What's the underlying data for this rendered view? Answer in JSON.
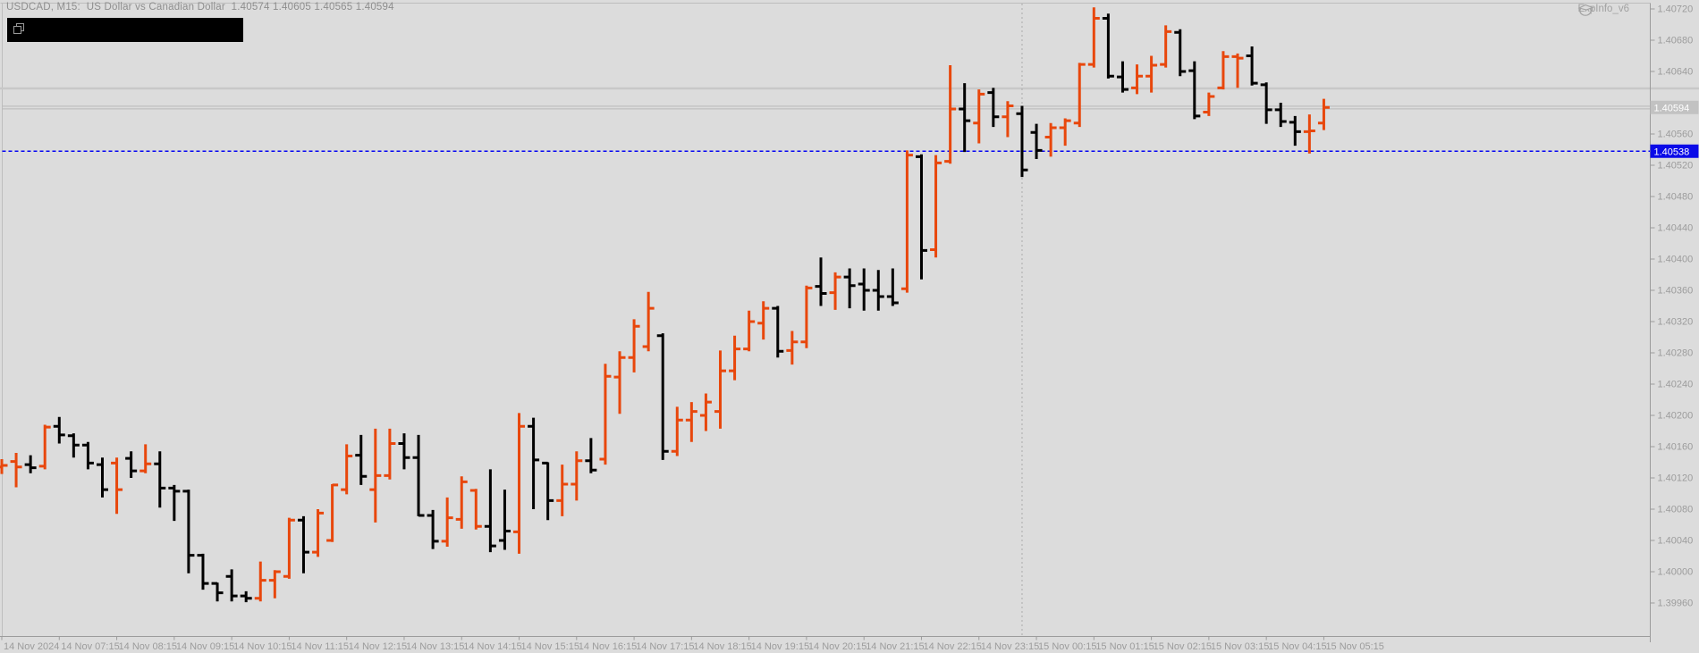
{
  "window": {
    "title_line": "USDCAD, M15:  US Dollar vs Canadian Dollar  1.40574 1.40605 1.40565 1.40594",
    "expert_label": "ExpInfo_v6"
  },
  "price_axis": {
    "labels": [
      "1.40720",
      "1.40680",
      "1.40640",
      "1.40560",
      "1.40520",
      "1.40480",
      "1.40440",
      "1.40400",
      "1.40360",
      "1.40320",
      "1.40280",
      "1.40240",
      "1.40200",
      "1.40160",
      "1.40120",
      "1.40080",
      "1.40040",
      "1.40000",
      "1.39960"
    ],
    "bid_label": "1.40594",
    "blue_line_label": "1.40538"
  },
  "time_axis": {
    "labels": [
      "14 Nov 2024",
      "14 Nov 07:15",
      "14 Nov 08:15",
      "14 Nov 09:15",
      "14 Nov 10:15",
      "14 Nov 11:15",
      "14 Nov 12:15",
      "14 Nov 13:15",
      "14 Nov 14:15",
      "14 Nov 15:15",
      "14 Nov 16:15",
      "14 Nov 17:15",
      "14 Nov 18:15",
      "14 Nov 19:15",
      "14 Nov 20:15",
      "14 Nov 21:15",
      "14 Nov 22:15",
      "14 Nov 23:15",
      "15 Nov 00:15",
      "15 Nov 01:15",
      "15 Nov 02:15",
      "15 Nov 03:15",
      "15 Nov 04:15",
      "15 Nov 05:15"
    ]
  },
  "chart_data": {
    "type": "ohlc-bar",
    "symbol": "USDCAD",
    "timeframe": "M15",
    "title": "USDCAD, M15: US Dollar vs Canadian Dollar",
    "current_bar": {
      "open": 1.40574,
      "high": 1.40605,
      "low": 1.40565,
      "close": 1.40594
    },
    "bid_price": 1.40594,
    "blue_line_price": 1.40538,
    "price_axis_top": 1.4072,
    "price_axis_bottom": 1.3996,
    "start_time": "14 Nov 2024 06:15",
    "interval_minutes": 15,
    "day_separator_time": "00:00",
    "up_color": "#e8470c",
    "down_color": "#000000",
    "grid": "off",
    "bars": [
      [
        "06:15",
        1.40134,
        1.40144,
        1.40125,
        1.40136,
        "u"
      ],
      [
        "06:30",
        1.40141,
        1.40152,
        1.40108,
        1.40134,
        "u"
      ],
      [
        "06:45",
        1.40137,
        1.40149,
        1.40126,
        1.40133,
        "d"
      ],
      [
        "07:00",
        1.40135,
        1.40188,
        1.40131,
        1.40185,
        "u"
      ],
      [
        "07:15",
        1.40186,
        1.40198,
        1.40164,
        1.40175,
        "d"
      ],
      [
        "07:30",
        1.40174,
        1.40177,
        1.40146,
        1.40162,
        "d"
      ],
      [
        "07:45",
        1.40162,
        1.40166,
        1.40131,
        1.40139,
        "d"
      ],
      [
        "08:00",
        1.40137,
        1.40146,
        1.40095,
        1.40105,
        "d"
      ],
      [
        "08:15",
        1.40139,
        1.40146,
        1.40074,
        1.40105,
        "u"
      ],
      [
        "08:30",
        1.40145,
        1.40154,
        1.4012,
        1.40129,
        "d"
      ],
      [
        "08:45",
        1.40129,
        1.40163,
        1.40126,
        1.40138,
        "u"
      ],
      [
        "09:00",
        1.40138,
        1.40154,
        1.40082,
        1.40107,
        "d"
      ],
      [
        "09:15",
        1.40107,
        1.40111,
        1.40065,
        1.40103,
        "d"
      ],
      [
        "09:30",
        1.40103,
        1.40105,
        1.39998,
        1.40021,
        "d"
      ],
      [
        "09:45",
        1.40021,
        1.40023,
        1.39977,
        1.39985,
        "d"
      ],
      [
        "10:00",
        1.39985,
        1.39986,
        1.39962,
        1.39973,
        "d"
      ],
      [
        "10:15",
        1.39994,
        1.40003,
        1.39962,
        1.39969,
        "d"
      ],
      [
        "10:30",
        1.39969,
        1.39975,
        1.39961,
        1.39966,
        "d"
      ],
      [
        "10:45",
        1.39966,
        1.40013,
        1.39962,
        1.39989,
        "u"
      ],
      [
        "11:00",
        1.39989,
        1.40002,
        1.39966,
        1.4,
        "u"
      ],
      [
        "11:15",
        1.39994,
        1.40069,
        1.39991,
        1.40066,
        "u"
      ],
      [
        "11:30",
        1.40066,
        1.40071,
        1.39998,
        1.40025,
        "d"
      ],
      [
        "11:45",
        1.40025,
        1.4008,
        1.40019,
        1.40075,
        "u"
      ],
      [
        "12:00",
        1.4004,
        1.40112,
        1.40038,
        1.40111,
        "u"
      ],
      [
        "12:15",
        1.40105,
        1.40163,
        1.40099,
        1.40148,
        "u"
      ],
      [
        "12:30",
        1.40149,
        1.40175,
        1.40111,
        1.40122,
        "d"
      ],
      [
        "12:45",
        1.40105,
        1.40183,
        1.40063,
        1.40123,
        "u"
      ],
      [
        "13:00",
        1.40123,
        1.40183,
        1.40118,
        1.40164,
        "u"
      ],
      [
        "13:15",
        1.40164,
        1.40177,
        1.40131,
        1.40146,
        "d"
      ],
      [
        "13:30",
        1.40146,
        1.40175,
        1.40071,
        1.40072,
        "d"
      ],
      [
        "13:45",
        1.40072,
        1.40079,
        1.40029,
        1.40039,
        "d"
      ],
      [
        "14:00",
        1.40039,
        1.40095,
        1.40032,
        1.40069,
        "u"
      ],
      [
        "14:15",
        1.40067,
        1.40122,
        1.40055,
        1.40115,
        "u"
      ],
      [
        "14:30",
        1.40104,
        1.40106,
        1.40054,
        1.40058,
        "u"
      ],
      [
        "14:45",
        1.40058,
        1.40131,
        1.40025,
        1.40033,
        "d"
      ],
      [
        "15:00",
        1.4004,
        1.40105,
        1.40028,
        1.40052,
        "d"
      ],
      [
        "15:15",
        1.40051,
        1.40203,
        1.40023,
        1.40186,
        "u"
      ],
      [
        "15:30",
        1.40186,
        1.40197,
        1.4008,
        1.40143,
        "d"
      ],
      [
        "15:45",
        1.40139,
        1.4014,
        1.40066,
        1.40091,
        "d"
      ],
      [
        "16:00",
        1.40091,
        1.40137,
        1.40071,
        1.40112,
        "u"
      ],
      [
        "16:15",
        1.40112,
        1.40154,
        1.40091,
        1.40142,
        "u"
      ],
      [
        "16:30",
        1.40142,
        1.40171,
        1.40126,
        1.4013,
        "d"
      ],
      [
        "16:45",
        1.40144,
        1.40266,
        1.40137,
        1.4025,
        "u"
      ],
      [
        "17:00",
        1.40249,
        1.40282,
        1.40202,
        1.40274,
        "u"
      ],
      [
        "17:15",
        1.40274,
        1.40323,
        1.40255,
        1.40314,
        "u"
      ],
      [
        "17:30",
        1.40288,
        1.40358,
        1.40282,
        1.40337,
        "u"
      ],
      [
        "17:45",
        1.40302,
        1.40305,
        1.40143,
        1.40154,
        "d"
      ],
      [
        "18:00",
        1.40154,
        1.40211,
        1.40148,
        1.40194,
        "u"
      ],
      [
        "18:15",
        1.40194,
        1.40217,
        1.40166,
        1.40205,
        "u"
      ],
      [
        "18:30",
        1.402,
        1.40228,
        1.4018,
        1.40217,
        "u"
      ],
      [
        "18:45",
        1.40205,
        1.40283,
        1.40183,
        1.40257,
        "u"
      ],
      [
        "19:00",
        1.40257,
        1.40302,
        1.40245,
        1.40285,
        "u"
      ],
      [
        "19:15",
        1.40285,
        1.40334,
        1.40282,
        1.4032,
        "u"
      ],
      [
        "19:30",
        1.40318,
        1.40346,
        1.40297,
        1.40337,
        "u"
      ],
      [
        "19:45",
        1.40337,
        1.4034,
        1.40274,
        1.40282,
        "d"
      ],
      [
        "20:00",
        1.40283,
        1.40308,
        1.40265,
        1.40294,
        "u"
      ],
      [
        "20:15",
        1.40294,
        1.40366,
        1.40286,
        1.40363,
        "u"
      ],
      [
        "20:30",
        1.40365,
        1.40402,
        1.4034,
        1.40356,
        "d"
      ],
      [
        "20:45",
        1.40357,
        1.40383,
        1.40335,
        1.40377,
        "u"
      ],
      [
        "21:00",
        1.40377,
        1.40388,
        1.40337,
        1.40366,
        "d"
      ],
      [
        "21:15",
        1.40368,
        1.40388,
        1.40334,
        1.4036,
        "d"
      ],
      [
        "21:30",
        1.4036,
        1.40386,
        1.40334,
        1.40352,
        "d"
      ],
      [
        "21:45",
        1.40352,
        1.40388,
        1.4034,
        1.40344,
        "d"
      ],
      [
        "22:00",
        1.40362,
        1.40539,
        1.40357,
        1.40533,
        "u"
      ],
      [
        "22:15",
        1.40531,
        1.40534,
        1.40374,
        1.40411,
        "d"
      ],
      [
        "22:30",
        1.40412,
        1.40533,
        1.40402,
        1.40523,
        "u"
      ],
      [
        "22:45",
        1.40525,
        1.40648,
        1.40522,
        1.40592,
        "u"
      ],
      [
        "23:00",
        1.40592,
        1.40625,
        1.40537,
        1.40577,
        "d"
      ],
      [
        "23:15",
        1.40574,
        1.40617,
        1.40548,
        1.40611,
        "u"
      ],
      [
        "23:30",
        1.40613,
        1.40619,
        1.40569,
        1.40582,
        "d"
      ],
      [
        "23:45",
        1.40582,
        1.40602,
        1.40556,
        1.40596,
        "u"
      ],
      [
        "00:00",
        1.40586,
        1.40596,
        1.40505,
        1.40514,
        "d"
      ],
      [
        "00:15",
        1.40562,
        1.40573,
        1.40528,
        1.40539,
        "d"
      ],
      [
        "00:30",
        1.40556,
        1.40574,
        1.40531,
        1.40568,
        "u"
      ],
      [
        "00:45",
        1.40568,
        1.4058,
        1.40545,
        1.40577,
        "u"
      ],
      [
        "01:00",
        1.40574,
        1.40651,
        1.40569,
        1.40649,
        "u"
      ],
      [
        "01:15",
        1.40649,
        1.40722,
        1.40645,
        1.40708,
        "u"
      ],
      [
        "01:30",
        1.40708,
        1.40714,
        1.40631,
        1.40634,
        "d"
      ],
      [
        "01:45",
        1.40633,
        1.40653,
        1.40613,
        1.40617,
        "d"
      ],
      [
        "02:00",
        1.40619,
        1.40649,
        1.40611,
        1.40634,
        "u"
      ],
      [
        "02:15",
        1.40634,
        1.4066,
        1.40613,
        1.40648,
        "u"
      ],
      [
        "02:30",
        1.40649,
        1.40699,
        1.40645,
        1.40691,
        "u"
      ],
      [
        "02:45",
        1.4069,
        1.40694,
        1.40634,
        1.4064,
        "d"
      ],
      [
        "03:00",
        1.40641,
        1.40653,
        1.40579,
        1.40583,
        "d"
      ],
      [
        "03:15",
        1.40588,
        1.40613,
        1.40583,
        1.40608,
        "u"
      ],
      [
        "03:30",
        1.40619,
        1.40666,
        1.40617,
        1.40659,
        "u"
      ],
      [
        "03:45",
        1.40659,
        1.40663,
        1.40619,
        1.40657,
        "u"
      ],
      [
        "04:00",
        1.4066,
        1.40672,
        1.40622,
        1.40625,
        "d"
      ],
      [
        "04:15",
        1.40623,
        1.40626,
        1.40573,
        1.40591,
        "d"
      ],
      [
        "04:30",
        1.40591,
        1.406,
        1.40569,
        1.40576,
        "d"
      ],
      [
        "04:45",
        1.40575,
        1.40583,
        1.40545,
        1.40563,
        "d"
      ],
      [
        "05:00",
        1.40563,
        1.40585,
        1.40535,
        1.40564,
        "u"
      ],
      [
        "05:15",
        1.40574,
        1.40605,
        1.40565,
        1.40594,
        "u"
      ]
    ]
  }
}
